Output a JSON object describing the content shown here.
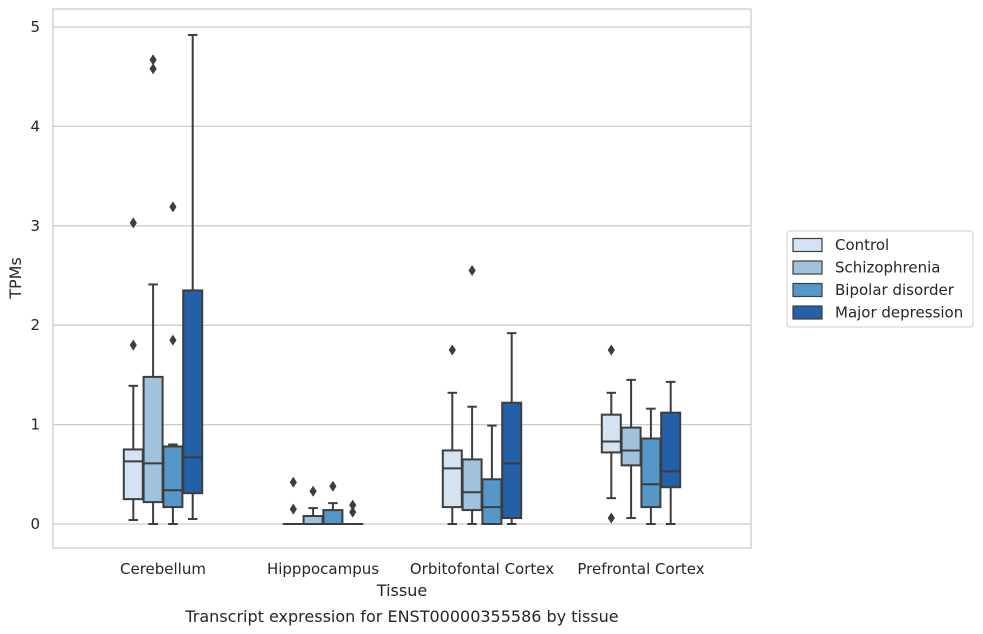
{
  "caption": "Transcript expression for ENST00000355586 by tissue",
  "chart_data": {
    "type": "box",
    "xlabel": "Tissue",
    "ylabel": "TPMs",
    "ylim": [
      -0.24,
      5.18
    ],
    "yticks": [
      0,
      1,
      2,
      3,
      4,
      5
    ],
    "grid": "horizontal",
    "legend_position": "right",
    "categories": [
      "Cerebellum",
      "Hipppocampus",
      "Orbitofontal Cortex",
      "Prefrontal Cortex"
    ],
    "series": [
      {
        "name": "Control",
        "color": "#d4e3f2",
        "boxes": [
          {
            "whislo": 0.04,
            "q1": 0.25,
            "med": 0.63,
            "q3": 0.75,
            "whishi": 1.39,
            "fliers": [
              1.8,
              3.03
            ]
          },
          {
            "whislo": 0.0,
            "q1": 0.0,
            "med": 0.0,
            "q3": 0.0,
            "whishi": 0.0,
            "fliers": [
              0.15,
              0.42
            ]
          },
          {
            "whislo": 0.0,
            "q1": 0.17,
            "med": 0.56,
            "q3": 0.74,
            "whishi": 1.32,
            "fliers": [
              1.75
            ]
          },
          {
            "whislo": 0.26,
            "q1": 0.72,
            "med": 0.83,
            "q3": 1.1,
            "whishi": 1.32,
            "fliers": [
              0.06,
              1.75
            ]
          }
        ]
      },
      {
        "name": "Schizophrenia",
        "color": "#9fc3de",
        "boxes": [
          {
            "whislo": 0.0,
            "q1": 0.22,
            "med": 0.61,
            "q3": 1.48,
            "whishi": 2.41,
            "fliers": [
              4.58,
              4.67
            ]
          },
          {
            "whislo": 0.0,
            "q1": 0.0,
            "med": 0.0,
            "q3": 0.08,
            "whishi": 0.16,
            "fliers": [
              0.33
            ]
          },
          {
            "whislo": 0.0,
            "q1": 0.14,
            "med": 0.32,
            "q3": 0.65,
            "whishi": 1.18,
            "fliers": [
              2.55
            ]
          },
          {
            "whislo": 0.06,
            "q1": 0.59,
            "med": 0.74,
            "q3": 0.97,
            "whishi": 1.45,
            "fliers": []
          }
        ]
      },
      {
        "name": "Bipolar disorder",
        "color": "#5597c9",
        "boxes": [
          {
            "whislo": 0.0,
            "q1": 0.17,
            "med": 0.34,
            "q3": 0.78,
            "whishi": 0.8,
            "fliers": [
              1.85,
              3.19
            ]
          },
          {
            "whislo": 0.0,
            "q1": 0.0,
            "med": 0.0,
            "q3": 0.14,
            "whishi": 0.21,
            "fliers": [
              0.38
            ]
          },
          {
            "whislo": 0.0,
            "q1": 0.0,
            "med": 0.17,
            "q3": 0.45,
            "whishi": 0.99,
            "fliers": []
          },
          {
            "whislo": 0.0,
            "q1": 0.17,
            "med": 0.4,
            "q3": 0.86,
            "whishi": 1.16,
            "fliers": []
          }
        ]
      },
      {
        "name": "Major depression",
        "color": "#2460a7",
        "boxes": [
          {
            "whislo": 0.05,
            "q1": 0.31,
            "med": 0.67,
            "q3": 2.35,
            "whishi": 4.92,
            "fliers": []
          },
          {
            "whislo": 0.0,
            "q1": 0.0,
            "med": 0.0,
            "q3": 0.0,
            "whishi": 0.0,
            "fliers": [
              0.12,
              0.19
            ]
          },
          {
            "whislo": 0.0,
            "q1": 0.06,
            "med": 0.61,
            "q3": 1.22,
            "whishi": 1.92,
            "fliers": []
          },
          {
            "whislo": 0.0,
            "q1": 0.37,
            "med": 0.53,
            "q3": 1.12,
            "whishi": 1.43,
            "fliers": []
          }
        ]
      }
    ]
  }
}
